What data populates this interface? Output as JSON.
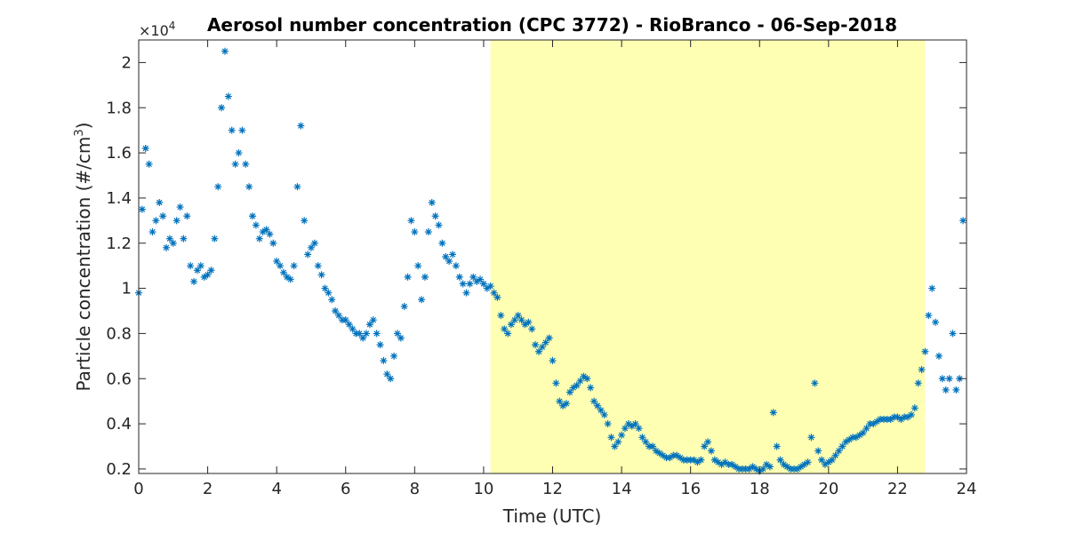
{
  "chart_data": {
    "type": "scatter",
    "title": "Aerosol number concentration (CPC 3772) - RioBranco - 06-Sep-2018",
    "xlabel": "Time (UTC)",
    "ylabel_main": "Particle concentration (#/cm",
    "ylabel_sup": "3",
    "ylabel_close": ")",
    "y_exponent_base": "×10",
    "y_exponent_power": "4",
    "marker": "*",
    "xlim": [
      0,
      24
    ],
    "ylim": [
      0.18,
      2.1
    ],
    "xticks": [
      0,
      2,
      4,
      6,
      8,
      10,
      12,
      14,
      16,
      18,
      20,
      22,
      24
    ],
    "xtick_labels": [
      "0",
      "2",
      "4",
      "6",
      "8",
      "10",
      "12",
      "14",
      "16",
      "18",
      "20",
      "22",
      "24"
    ],
    "yticks": [
      0.2,
      0.4,
      0.6,
      0.8,
      1.0,
      1.2,
      1.4,
      1.6,
      1.8,
      2.0
    ],
    "ytick_labels": [
      "0.2",
      "0.4",
      "0.6",
      "0.8",
      "1",
      "1.2",
      "1.4",
      "1.6",
      "1.8",
      "2"
    ],
    "grid": false,
    "highlight_region": {
      "x_start": 10.2,
      "x_end": 22.8,
      "color": "#ffffb3"
    },
    "series": [
      {
        "color": "#0072bd",
        "x": [
          0.0,
          0.1,
          0.2,
          0.3,
          0.4,
          0.5,
          0.6,
          0.7,
          0.8,
          0.9,
          1.0,
          1.1,
          1.2,
          1.3,
          1.4,
          1.5,
          1.6,
          1.7,
          1.8,
          1.9,
          2.0,
          2.1,
          2.2,
          2.3,
          2.4,
          2.5,
          2.6,
          2.7,
          2.8,
          2.9,
          3.0,
          3.1,
          3.2,
          3.3,
          3.4,
          3.5,
          3.6,
          3.7,
          3.8,
          3.9,
          4.0,
          4.1,
          4.2,
          4.3,
          4.4,
          4.5,
          4.6,
          4.7,
          4.8,
          4.9,
          5.0,
          5.1,
          5.2,
          5.3,
          5.4,
          5.5,
          5.6,
          5.7,
          5.8,
          5.9,
          6.0,
          6.1,
          6.2,
          6.3,
          6.4,
          6.5,
          6.6,
          6.7,
          6.8,
          6.9,
          7.0,
          7.1,
          7.2,
          7.3,
          7.4,
          7.5,
          7.6,
          7.7,
          7.8,
          7.9,
          8.0,
          8.1,
          8.2,
          8.3,
          8.4,
          8.5,
          8.6,
          8.7,
          8.8,
          8.9,
          9.0,
          9.1,
          9.2,
          9.3,
          9.4,
          9.5,
          9.6,
          9.7,
          9.8,
          9.9,
          10.0,
          10.1,
          10.2,
          10.3,
          10.4,
          10.5,
          10.6,
          10.7,
          10.8,
          10.9,
          11.0,
          11.1,
          11.2,
          11.3,
          11.4,
          11.5,
          11.6,
          11.7,
          11.8,
          11.9,
          12.0,
          12.1,
          12.2,
          12.3,
          12.4,
          12.5,
          12.6,
          12.7,
          12.8,
          12.9,
          13.0,
          13.1,
          13.2,
          13.3,
          13.4,
          13.5,
          13.6,
          13.7,
          13.8,
          13.9,
          14.0,
          14.1,
          14.2,
          14.3,
          14.4,
          14.5,
          14.6,
          14.7,
          14.8,
          14.9,
          15.0,
          15.1,
          15.2,
          15.3,
          15.4,
          15.5,
          15.6,
          15.7,
          15.8,
          15.9,
          16.0,
          16.1,
          16.2,
          16.3,
          16.4,
          16.5,
          16.6,
          16.7,
          16.8,
          16.9,
          17.0,
          17.1,
          17.2,
          17.3,
          17.4,
          17.5,
          17.6,
          17.7,
          17.8,
          17.9,
          18.0,
          18.1,
          18.2,
          18.3,
          18.4,
          18.5,
          18.6,
          18.7,
          18.8,
          18.9,
          19.0,
          19.1,
          19.2,
          19.3,
          19.4,
          19.5,
          19.6,
          19.7,
          19.8,
          19.9,
          20.0,
          20.1,
          20.2,
          20.3,
          20.4,
          20.5,
          20.6,
          20.7,
          20.8,
          20.9,
          21.0,
          21.1,
          21.2,
          21.3,
          21.4,
          21.5,
          21.6,
          21.7,
          21.8,
          21.9,
          22.0,
          22.1,
          22.2,
          22.3,
          22.4,
          22.5,
          22.6,
          22.7,
          22.8,
          22.9,
          23.0,
          23.1,
          23.2,
          23.3,
          23.4,
          23.5,
          23.6,
          23.7,
          23.8,
          23.9
        ],
        "y": [
          0.98,
          1.35,
          1.62,
          1.55,
          1.25,
          1.3,
          1.38,
          1.32,
          1.18,
          1.22,
          1.2,
          1.3,
          1.36,
          1.22,
          1.32,
          1.1,
          1.03,
          1.08,
          1.1,
          1.05,
          1.06,
          1.08,
          1.22,
          1.45,
          1.8,
          2.05,
          1.85,
          1.7,
          1.55,
          1.6,
          1.7,
          1.55,
          1.45,
          1.32,
          1.28,
          1.22,
          1.25,
          1.26,
          1.24,
          1.2,
          1.12,
          1.1,
          1.07,
          1.05,
          1.04,
          1.1,
          1.45,
          1.72,
          1.3,
          1.15,
          1.18,
          1.2,
          1.1,
          1.06,
          1.0,
          0.98,
          0.95,
          0.9,
          0.88,
          0.86,
          0.86,
          0.84,
          0.82,
          0.8,
          0.8,
          0.78,
          0.8,
          0.84,
          0.86,
          0.8,
          0.75,
          0.68,
          0.62,
          0.6,
          0.7,
          0.8,
          0.78,
          0.92,
          1.05,
          1.3,
          1.25,
          1.1,
          0.95,
          1.05,
          1.25,
          1.38,
          1.32,
          1.28,
          1.2,
          1.14,
          1.12,
          1.15,
          1.1,
          1.05,
          1.02,
          0.98,
          1.02,
          1.05,
          1.03,
          1.04,
          1.02,
          1.0,
          1.01,
          0.98,
          0.96,
          0.88,
          0.82,
          0.8,
          0.84,
          0.86,
          0.88,
          0.86,
          0.84,
          0.85,
          0.82,
          0.75,
          0.72,
          0.74,
          0.76,
          0.78,
          0.68,
          0.58,
          0.5,
          0.48,
          0.49,
          0.54,
          0.56,
          0.57,
          0.59,
          0.61,
          0.6,
          0.56,
          0.5,
          0.48,
          0.46,
          0.44,
          0.4,
          0.34,
          0.3,
          0.32,
          0.35,
          0.38,
          0.4,
          0.39,
          0.4,
          0.38,
          0.34,
          0.32,
          0.3,
          0.3,
          0.28,
          0.27,
          0.26,
          0.25,
          0.25,
          0.26,
          0.26,
          0.25,
          0.24,
          0.24,
          0.24,
          0.24,
          0.23,
          0.24,
          0.3,
          0.32,
          0.28,
          0.24,
          0.23,
          0.22,
          0.23,
          0.22,
          0.22,
          0.21,
          0.2,
          0.2,
          0.2,
          0.2,
          0.21,
          0.2,
          0.19,
          0.2,
          0.22,
          0.21,
          0.45,
          0.3,
          0.24,
          0.22,
          0.21,
          0.2,
          0.2,
          0.2,
          0.21,
          0.22,
          0.23,
          0.34,
          0.58,
          0.28,
          0.24,
          0.22,
          0.23,
          0.24,
          0.26,
          0.28,
          0.3,
          0.32,
          0.33,
          0.34,
          0.34,
          0.35,
          0.36,
          0.38,
          0.4,
          0.4,
          0.41,
          0.42,
          0.42,
          0.42,
          0.42,
          0.43,
          0.43,
          0.42,
          0.43,
          0.43,
          0.44,
          0.47,
          0.58,
          0.64,
          0.72,
          0.88,
          1.0,
          0.85,
          0.7,
          0.6,
          0.55,
          0.6,
          0.8,
          0.55,
          0.6,
          1.3
        ]
      }
    ]
  }
}
